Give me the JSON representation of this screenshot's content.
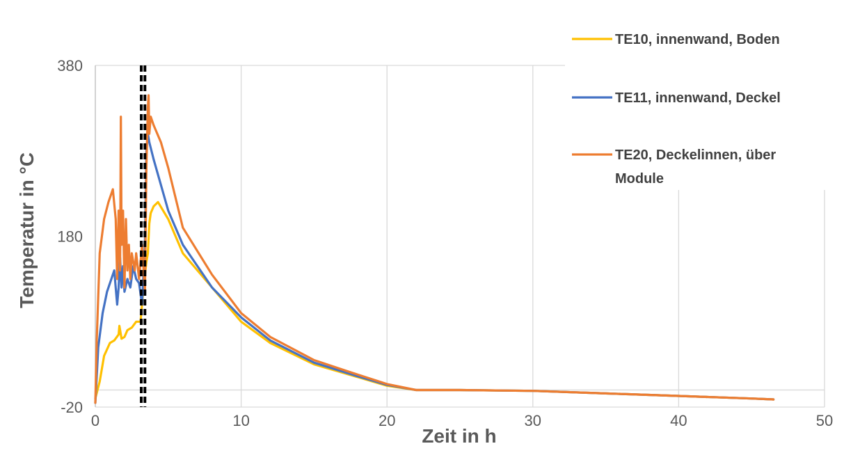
{
  "chart_data": {
    "type": "line",
    "xlabel": "Zeit in h",
    "ylabel": "Temperatur in °C",
    "xlim": [
      0,
      50
    ],
    "ylim": [
      -20,
      380
    ],
    "x_ticks": [
      "0",
      "10",
      "20",
      "30",
      "40",
      "50"
    ],
    "y_ticks": [
      "380",
      "180",
      "-20"
    ],
    "grid": true,
    "legend_position": "top-right",
    "marker_lines": [
      {
        "x": 3.15,
        "style": "dashed",
        "color": "#000000"
      },
      {
        "x": 3.4,
        "style": "dashed",
        "color": "#000000"
      }
    ],
    "series": [
      {
        "name": "TE10, innenwand, Boden",
        "color": "#FFC000",
        "x": [
          0,
          0.3,
          0.6,
          1.0,
          1.3,
          1.6,
          1.65,
          1.8,
          2.0,
          2.2,
          2.5,
          2.8,
          3.1,
          3.3,
          3.5,
          3.6,
          3.7,
          3.8,
          4.0,
          4.3,
          5,
          6,
          8,
          10,
          12,
          15,
          18,
          20,
          22,
          25,
          30,
          35,
          40,
          45,
          46.5
        ],
        "y": [
          -10,
          10,
          40,
          55,
          58,
          65,
          75,
          60,
          62,
          70,
          73,
          80,
          80,
          120,
          150,
          160,
          195,
          207,
          215,
          220,
          200,
          160,
          120,
          80,
          55,
          30,
          15,
          5,
          0,
          0,
          -1,
          -4,
          -7,
          -10,
          -11
        ]
      },
      {
        "name": "TE11, innenwand, Deckel",
        "color": "#4472C4",
        "x": [
          0,
          0.2,
          0.5,
          0.8,
          1.0,
          1.3,
          1.5,
          1.6,
          1.7,
          1.8,
          1.9,
          2.0,
          2.2,
          2.4,
          2.6,
          2.8,
          3.0,
          3.2,
          3.4,
          3.5,
          3.6,
          3.7,
          4.0,
          5,
          6,
          8,
          10,
          12,
          15,
          18,
          20,
          22,
          25,
          30,
          35,
          40,
          45,
          46.5
        ],
        "y": [
          -15,
          50,
          90,
          115,
          125,
          140,
          100,
          120,
          155,
          120,
          145,
          115,
          130,
          120,
          145,
          130,
          125,
          100,
          170,
          280,
          300,
          290,
          270,
          210,
          170,
          120,
          85,
          58,
          32,
          16,
          6,
          0,
          0,
          -1,
          -4,
          -7,
          -10,
          -11
        ]
      },
      {
        "name": "TE20, Deckelinnen, über Module",
        "color": "#ED7D31",
        "x": [
          0,
          0.1,
          0.3,
          0.6,
          0.9,
          1.2,
          1.4,
          1.5,
          1.6,
          1.7,
          1.75,
          1.8,
          1.9,
          2.0,
          2.1,
          2.2,
          2.3,
          2.4,
          2.5,
          2.6,
          2.7,
          2.8,
          3.0,
          3.2,
          3.4,
          3.5,
          3.6,
          3.65,
          3.7,
          3.8,
          4.0,
          4.5,
          5,
          6,
          8,
          10,
          12,
          15,
          18,
          20,
          22,
          25,
          30,
          35,
          40,
          45,
          46.5
        ],
        "y": [
          -15,
          60,
          160,
          200,
          220,
          235,
          200,
          130,
          210,
          140,
          320,
          170,
          210,
          120,
          200,
          140,
          170,
          130,
          160,
          150,
          140,
          160,
          130,
          170,
          115,
          260,
          330,
          345,
          300,
          320,
          310,
          290,
          260,
          190,
          135,
          90,
          62,
          35,
          18,
          7,
          0,
          0,
          -1,
          -4,
          -7,
          -10,
          -11
        ]
      }
    ]
  }
}
